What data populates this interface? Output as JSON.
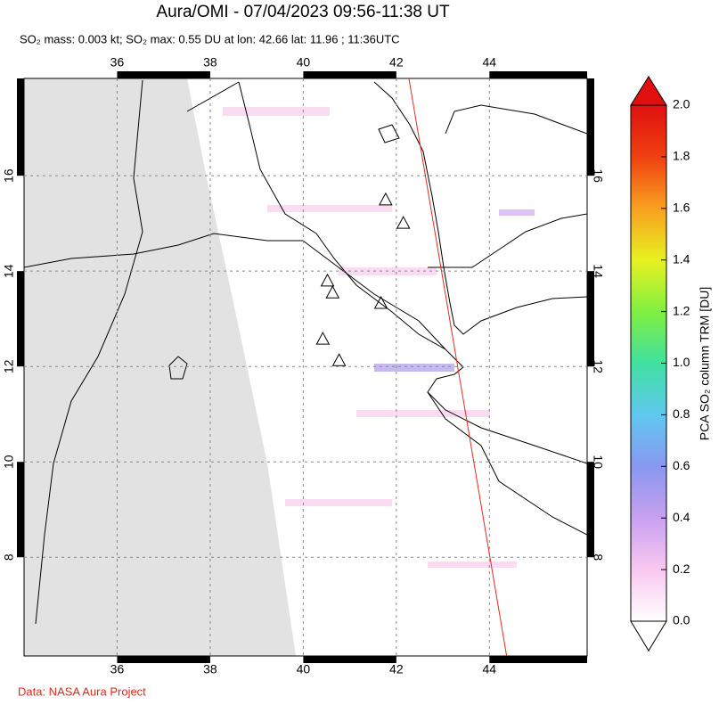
{
  "chart_data": {
    "type": "map",
    "title": "Aura/OMI - 07/04/2023 09:56-11:38 UT",
    "subtitle": "SO₂ mass: 0.003 kt; SO₂ max: 0.55 DU at lon: 42.66 lat: 11.96 ; 11:36UTC",
    "xlim": [
      34,
      46.1
    ],
    "ylim": [
      5.93,
      18.04
    ],
    "xticks": [
      36,
      38,
      40,
      42,
      44
    ],
    "yticks": [
      8,
      10,
      12,
      14,
      16
    ],
    "grid": true,
    "volcanoes": {
      "lon": [
        41.77,
        42.15,
        40.52,
        40.63,
        41.67,
        40.42,
        40.77
      ],
      "lat": [
        15.5,
        15.01,
        13.8,
        13.55,
        13.33,
        12.58,
        12.13
      ]
    },
    "orbit_track": {
      "lon": [
        42.27,
        44.37
      ],
      "lat": [
        18.04,
        5.93
      ],
      "color": "#e8291c"
    },
    "colorbar": {
      "label": "PCA SO₂ column TRM [DU]",
      "lim": [
        0,
        2
      ],
      "ticks": [
        {
          "value": 0,
          "label": "0.0"
        },
        0.2,
        0.4,
        0.6,
        0.8,
        {
          "value": 1,
          "label": "1.0"
        },
        1.2,
        1.4,
        1.6,
        1.8,
        {
          "value": 2,
          "label": "2.0"
        }
      ],
      "colors": [
        "#ffffff",
        "#f8c8f0",
        "#c8a0f0",
        "#8898f0",
        "#60c8f0",
        "#40e0a0",
        "#80f040",
        "#e8f020",
        "#f8a020",
        "#f04010",
        "#e01010"
      ]
    },
    "credit": "Data: NASA Aura Project"
  }
}
